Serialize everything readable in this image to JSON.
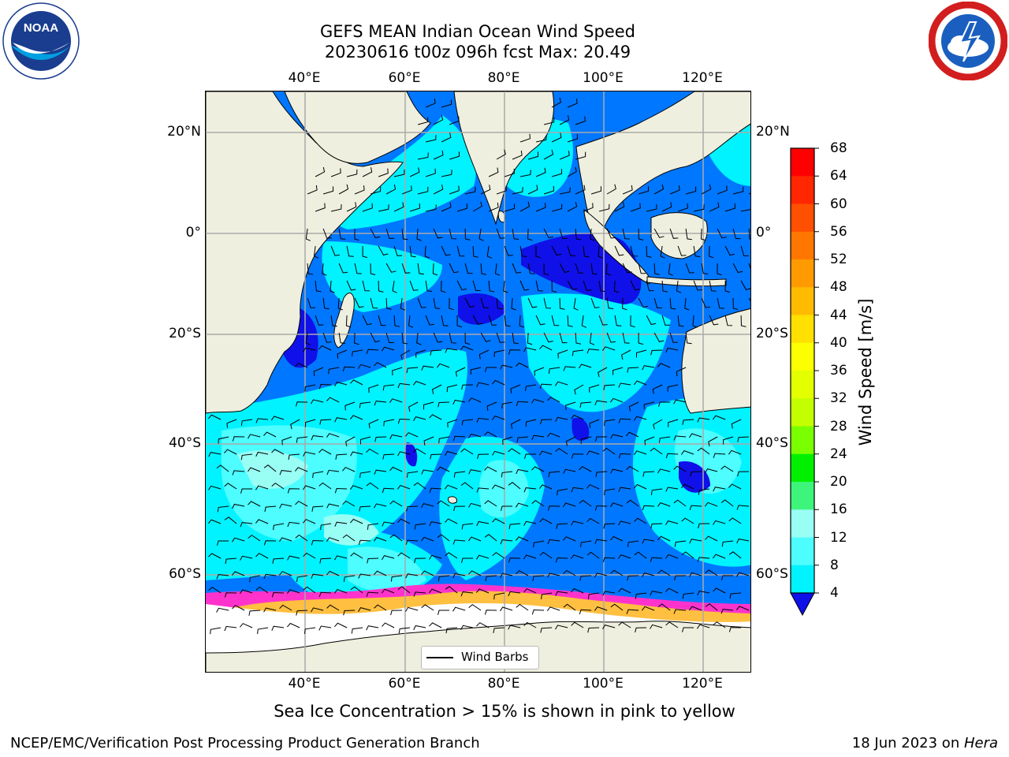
{
  "title_line1": "GEFS MEAN Indian Ocean Wind Speed",
  "title_line2": "20230616 t00z 096h fcst   Max: 20.49",
  "axes": {
    "lon_ticks": [
      "40°E",
      "60°E",
      "80°E",
      "100°E",
      "120°E"
    ],
    "lat_left": [
      "20°N",
      "0°",
      "20°S",
      "40°S",
      "60°S"
    ],
    "lat_right": [
      "20°N",
      "0°",
      "20°S",
      "40°S",
      "60°S"
    ]
  },
  "legend": {
    "label": "Wind Barbs"
  },
  "colorbar": {
    "title": "Wind Speed [m/s]",
    "ticks": [
      "68",
      "64",
      "60",
      "56",
      "52",
      "48",
      "44",
      "40",
      "36",
      "32",
      "28",
      "24",
      "20",
      "16",
      "12",
      "8",
      "4"
    ],
    "colors": [
      "#ff0000",
      "#ff2600",
      "#ff4f00",
      "#ff7700",
      "#ff9a00",
      "#ffbb00",
      "#ffe000",
      "#fbff00",
      "#e3ff00",
      "#c4ff00",
      "#7aff00",
      "#00f000",
      "#3cf57a",
      "#99fff4",
      "#4dfdff",
      "#00f3ff",
      "#0077ff"
    ],
    "extend_color": "#1010e8"
  },
  "map_colors": {
    "land": "#efefdf",
    "ice": "#ffffff",
    "band_4_8": "#0077ff",
    "band_8_12": "#00f3ff",
    "band_12_16": "#4dfdff",
    "band_16_20": "#99fff4",
    "below_4": "#1010e8",
    "sea_ice_edge": "#ff33cc",
    "sea_ice_high": "#ffbf40"
  },
  "sea_ice_note": "Sea Ice Concentration > 15% is shown in pink to yellow",
  "footer_left": "NCEP/EMC/Verification Post Processing Product Generation Branch",
  "footer_date": "18 Jun 2023 on ",
  "footer_host": "Hera",
  "logos": {
    "left": "NOAA",
    "right": "NATIONAL WEATHER SERVICE"
  }
}
